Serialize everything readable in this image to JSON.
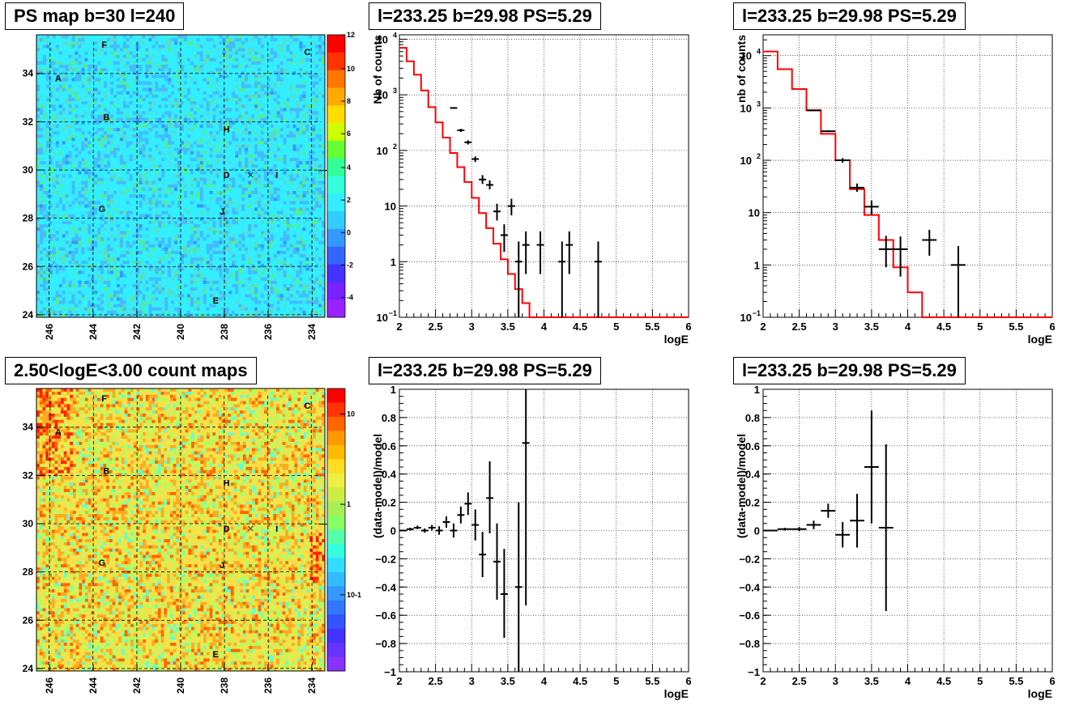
{
  "panels": {
    "ps_map": {
      "title": "PS map b=30 l=240",
      "x_ticks": [
        "246",
        "244",
        "242",
        "240",
        "238",
        "236",
        "234"
      ],
      "y_ticks": [
        "34",
        "32",
        "30",
        "28",
        "26",
        "24"
      ],
      "colorbar_ticks": [
        "12",
        "10",
        "8",
        "6",
        "4",
        "2",
        "0",
        "-2",
        "-4"
      ],
      "source_labels": [
        "F",
        "C",
        "A",
        "B",
        "H",
        "D",
        "I",
        "G",
        "J",
        "E"
      ]
    },
    "count_map": {
      "title": "2.50<logE<3.00 count maps",
      "x_ticks": [
        "246",
        "244",
        "242",
        "240",
        "238",
        "236",
        "234"
      ],
      "y_ticks": [
        "34",
        "32",
        "30",
        "28",
        "26",
        "24"
      ],
      "colorbar_ticks": [
        "10",
        "1",
        "10-1"
      ],
      "source_labels": [
        "F",
        "C",
        "A",
        "B",
        "H",
        "D",
        "I",
        "G",
        "J",
        "E"
      ]
    },
    "spectrum_1": {
      "title": "l=233.25 b=29.98 PS=5.29",
      "ylabel": "Nb of counts",
      "xlabel": "logE"
    },
    "spectrum_2": {
      "title": "l=233.25 b=29.98 PS=5.29",
      "ylabel": "nb of counts",
      "xlabel": "logE"
    },
    "residual_1": {
      "title": "l=233.25 b=29.98 PS=5.29",
      "ylabel": "(data-model)/model",
      "xlabel": "logE"
    },
    "residual_2": {
      "title": "l=233.25 b=29.98 PS=5.29",
      "ylabel": "(data-model)/model",
      "xlabel": "logE"
    }
  },
  "colors": {
    "model_line": "#ff0000",
    "data_marker": "#000000"
  },
  "chart_data": [
    {
      "type": "heatmap",
      "title": "PS map b=30 l=240",
      "xlim": [
        246.6,
        233.4
      ],
      "ylim": [
        23.9,
        35.6
      ],
      "x_ticks": [
        246,
        244,
        242,
        240,
        238,
        236,
        234
      ],
      "y_ticks": [
        34,
        32,
        30,
        28,
        26,
        24
      ],
      "z_range": [
        -5,
        12
      ],
      "sources": [
        {
          "label": "F",
          "l": 243.5,
          "b": 35.2
        },
        {
          "label": "C",
          "l": 234.2,
          "b": 34.9
        },
        {
          "label": "A",
          "l": 245.6,
          "b": 33.8
        },
        {
          "label": "B",
          "l": 243.4,
          "b": 32.2
        },
        {
          "label": "H",
          "l": 237.9,
          "b": 31.7
        },
        {
          "label": "D",
          "l": 237.9,
          "b": 29.8
        },
        {
          "label": "I",
          "l": 235.6,
          "b": 29.8
        },
        {
          "label": "G",
          "l": 243.6,
          "b": 28.4
        },
        {
          "label": "J",
          "l": 238.1,
          "b": 28.3
        },
        {
          "label": "E",
          "l": 238.4,
          "b": 24.6
        }
      ],
      "marked_position": {
        "l": 233.25,
        "b": 29.98
      }
    },
    {
      "type": "heatmap",
      "title": "2.50<logE<3.00 count maps",
      "xlim": [
        246.6,
        233.4
      ],
      "ylim": [
        23.9,
        35.6
      ],
      "x_ticks": [
        246,
        244,
        242,
        240,
        238,
        236,
        234
      ],
      "y_ticks": [
        34,
        32,
        30,
        28,
        26,
        24
      ],
      "z_scale": "log",
      "z_range": [
        0.02,
        20
      ],
      "sources": [
        {
          "label": "F",
          "l": 243.5,
          "b": 35.2
        },
        {
          "label": "C",
          "l": 234.2,
          "b": 34.9
        },
        {
          "label": "A",
          "l": 245.6,
          "b": 33.8
        },
        {
          "label": "B",
          "l": 243.4,
          "b": 32.2
        },
        {
          "label": "H",
          "l": 237.9,
          "b": 31.7
        },
        {
          "label": "D",
          "l": 237.9,
          "b": 29.8
        },
        {
          "label": "I",
          "l": 235.6,
          "b": 29.8
        },
        {
          "label": "G",
          "l": 243.6,
          "b": 28.4
        },
        {
          "label": "J",
          "l": 238.1,
          "b": 28.3
        },
        {
          "label": "E",
          "l": 238.4,
          "b": 24.6
        }
      ],
      "marked_position": {
        "l": 233.25,
        "b": 29.98
      }
    },
    {
      "type": "line",
      "title": "l=233.25 b=29.98 PS=5.29",
      "xlabel": "logE",
      "ylabel": "Nb of counts",
      "xlim": [
        2,
        6
      ],
      "ylim": [
        0.1,
        12000
      ],
      "yscale": "log",
      "grid": true,
      "model_step": {
        "edges": [
          2,
          2.1,
          2.2,
          2.3,
          2.4,
          2.5,
          2.6,
          2.7,
          2.8,
          2.9,
          3.0,
          3.1,
          3.2,
          3.3,
          3.4,
          3.5,
          3.6,
          3.7,
          3.8,
          3.9,
          4.0,
          4.1,
          4.2,
          6.0
        ],
        "values": [
          7000,
          4000,
          2300,
          1200,
          600,
          320,
          170,
          90,
          50,
          27,
          14,
          7.5,
          4,
          2.1,
          1.1,
          0.6,
          0.32,
          0.18,
          0.1,
          0.1,
          0.1,
          0.1,
          0.1
        ]
      },
      "points": [
        {
          "x": 2.75,
          "y": 580,
          "xerr": 0.05,
          "ylo": 560,
          "yhi": 600
        },
        {
          "x": 2.85,
          "y": 230,
          "xerr": 0.05,
          "ylo": 215,
          "yhi": 245
        },
        {
          "x": 2.95,
          "y": 140,
          "xerr": 0.05,
          "ylo": 128,
          "yhi": 152
        },
        {
          "x": 3.05,
          "y": 70,
          "xerr": 0.05,
          "ylo": 62,
          "yhi": 78
        },
        {
          "x": 3.15,
          "y": 30,
          "xerr": 0.05,
          "ylo": 25,
          "yhi": 36
        },
        {
          "x": 3.25,
          "y": 24,
          "xerr": 0.05,
          "ylo": 20,
          "yhi": 29
        },
        {
          "x": 3.35,
          "y": 8,
          "xerr": 0.05,
          "ylo": 5.5,
          "yhi": 11
        },
        {
          "x": 3.45,
          "y": 3,
          "xerr": 0.05,
          "ylo": 1.5,
          "yhi": 4.7
        },
        {
          "x": 3.55,
          "y": 10,
          "xerr": 0.05,
          "ylo": 6.8,
          "yhi": 13.5
        },
        {
          "x": 3.65,
          "y": 1,
          "xerr": 0.05,
          "ylo": 0.1,
          "yhi": 2.3
        },
        {
          "x": 3.75,
          "y": 2,
          "xerr": 0.05,
          "ylo": 0.6,
          "yhi": 3.5
        },
        {
          "x": 3.95,
          "y": 2,
          "xerr": 0.05,
          "ylo": 0.6,
          "yhi": 3.5
        },
        {
          "x": 4.25,
          "y": 1,
          "xerr": 0.05,
          "ylo": 0.1,
          "yhi": 2.3
        },
        {
          "x": 4.35,
          "y": 2,
          "xerr": 0.05,
          "ylo": 0.6,
          "yhi": 3.5
        },
        {
          "x": 4.75,
          "y": 1,
          "xerr": 0.05,
          "ylo": 0.1,
          "yhi": 2.3
        }
      ]
    },
    {
      "type": "line",
      "title": "l=233.25 b=29.98 PS=5.29",
      "xlabel": "logE",
      "ylabel": "nb of counts",
      "xlim": [
        2,
        6
      ],
      "ylim": [
        0.1,
        25000
      ],
      "yscale": "log",
      "grid": true,
      "model_step": {
        "edges": [
          2,
          2.2,
          2.4,
          2.6,
          2.8,
          3.0,
          3.2,
          3.4,
          3.6,
          3.8,
          4.0,
          4.2,
          6.0
        ],
        "values": [
          12000,
          5500,
          2300,
          900,
          320,
          100,
          28,
          9,
          3,
          0.9,
          0.3,
          0.1
        ]
      },
      "points": [
        {
          "x": 2.7,
          "y": 900,
          "xerr": 0.1,
          "ylo": 880,
          "yhi": 920
        },
        {
          "x": 2.9,
          "y": 360,
          "xerr": 0.1,
          "ylo": 345,
          "yhi": 375
        },
        {
          "x": 3.1,
          "y": 100,
          "xerr": 0.1,
          "ylo": 90,
          "yhi": 110
        },
        {
          "x": 3.3,
          "y": 30,
          "xerr": 0.1,
          "ylo": 25,
          "yhi": 36
        },
        {
          "x": 3.5,
          "y": 13,
          "xerr": 0.1,
          "ylo": 9,
          "yhi": 17
        },
        {
          "x": 3.7,
          "y": 2,
          "xerr": 0.1,
          "ylo": 0.9,
          "yhi": 3.6
        },
        {
          "x": 3.9,
          "y": 2,
          "xerr": 0.1,
          "ylo": 0.6,
          "yhi": 3.5
        },
        {
          "x": 4.3,
          "y": 3,
          "xerr": 0.1,
          "ylo": 1.5,
          "yhi": 4.7
        },
        {
          "x": 4.7,
          "y": 1,
          "xerr": 0.1,
          "ylo": 0.1,
          "yhi": 2.3
        }
      ]
    },
    {
      "type": "scatter",
      "title": "l=233.25 b=29.98 PS=5.29",
      "xlabel": "logE",
      "ylabel": "(data-model)/model",
      "xlim": [
        2,
        6
      ],
      "ylim": [
        -1,
        1
      ],
      "grid": true,
      "points": [
        {
          "x": 2.05,
          "y": 0.0,
          "xerr": 0.05,
          "ylo": -0.005,
          "yhi": 0.005
        },
        {
          "x": 2.15,
          "y": 0.01,
          "xerr": 0.05,
          "ylo": 0.0,
          "yhi": 0.02
        },
        {
          "x": 2.25,
          "y": 0.02,
          "xerr": 0.05,
          "ylo": 0.01,
          "yhi": 0.035
        },
        {
          "x": 2.35,
          "y": 0.0,
          "xerr": 0.05,
          "ylo": -0.015,
          "yhi": 0.015
        },
        {
          "x": 2.45,
          "y": 0.02,
          "xerr": 0.05,
          "ylo": 0.0,
          "yhi": 0.04
        },
        {
          "x": 2.55,
          "y": 0.0,
          "xerr": 0.05,
          "ylo": -0.03,
          "yhi": 0.03
        },
        {
          "x": 2.65,
          "y": 0.06,
          "xerr": 0.05,
          "ylo": 0.02,
          "yhi": 0.1
        },
        {
          "x": 2.75,
          "y": 0.0,
          "xerr": 0.05,
          "ylo": -0.05,
          "yhi": 0.05
        },
        {
          "x": 2.85,
          "y": 0.11,
          "xerr": 0.05,
          "ylo": 0.05,
          "yhi": 0.17
        },
        {
          "x": 2.95,
          "y": 0.19,
          "xerr": 0.05,
          "ylo": 0.11,
          "yhi": 0.27
        },
        {
          "x": 3.05,
          "y": 0.04,
          "xerr": 0.05,
          "ylo": -0.07,
          "yhi": 0.15
        },
        {
          "x": 3.15,
          "y": -0.17,
          "xerr": 0.05,
          "ylo": -0.33,
          "yhi": -0.01
        },
        {
          "x": 3.25,
          "y": 0.23,
          "xerr": 0.05,
          "ylo": -0.02,
          "yhi": 0.49
        },
        {
          "x": 3.35,
          "y": -0.22,
          "xerr": 0.05,
          "ylo": -0.49,
          "yhi": 0.05
        },
        {
          "x": 3.45,
          "y": -0.45,
          "xerr": 0.05,
          "ylo": -0.76,
          "yhi": -0.13
        },
        {
          "x": 3.65,
          "y": -0.4,
          "xerr": 0.05,
          "ylo": -1.0,
          "yhi": 0.2
        },
        {
          "x": 3.75,
          "y": 0.62,
          "xerr": 0.05,
          "ylo": -0.53,
          "yhi": 1.0
        }
      ]
    },
    {
      "type": "scatter",
      "title": "l=233.25 b=29.98 PS=5.29",
      "xlabel": "logE",
      "ylabel": "(data-model)/model",
      "xlim": [
        2,
        6
      ],
      "ylim": [
        -1,
        1
      ],
      "grid": true,
      "points": [
        {
          "x": 2.1,
          "y": 0.0,
          "xerr": 0.1,
          "ylo": -0.005,
          "yhi": 0.005
        },
        {
          "x": 2.3,
          "y": 0.01,
          "xerr": 0.1,
          "ylo": 0.0,
          "yhi": 0.02
        },
        {
          "x": 2.5,
          "y": 0.01,
          "xerr": 0.1,
          "ylo": -0.005,
          "yhi": 0.025
        },
        {
          "x": 2.7,
          "y": 0.04,
          "xerr": 0.1,
          "ylo": 0.01,
          "yhi": 0.07
        },
        {
          "x": 2.9,
          "y": 0.14,
          "xerr": 0.1,
          "ylo": 0.09,
          "yhi": 0.19
        },
        {
          "x": 3.1,
          "y": -0.03,
          "xerr": 0.1,
          "ylo": -0.12,
          "yhi": 0.06
        },
        {
          "x": 3.3,
          "y": 0.07,
          "xerr": 0.1,
          "ylo": -0.12,
          "yhi": 0.26
        },
        {
          "x": 3.5,
          "y": 0.45,
          "xerr": 0.1,
          "ylo": 0.05,
          "yhi": 0.85
        },
        {
          "x": 3.7,
          "y": 0.02,
          "xerr": 0.1,
          "ylo": -0.57,
          "yhi": 0.61
        }
      ]
    }
  ]
}
